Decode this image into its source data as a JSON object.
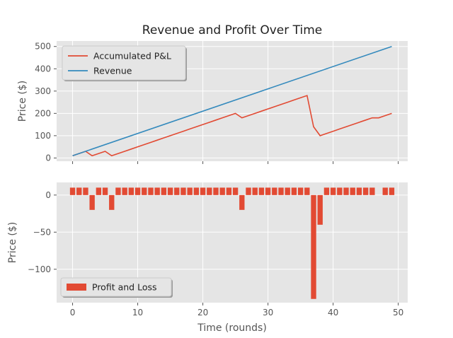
{
  "chart_data": [
    {
      "type": "line",
      "title": "Revenue and Profit Over Time",
      "xlabel": "",
      "ylabel": "Price ($)",
      "xlim": [
        -2.45,
        51.45
      ],
      "ylim": [
        -14.5,
        524.5
      ],
      "xticks": [
        0,
        10,
        20,
        30,
        40,
        50
      ],
      "xtick_labels_visible": false,
      "yticks": [
        0,
        100,
        200,
        300,
        400,
        500
      ],
      "ytick_labels": [
        "0",
        "100",
        "200",
        "300",
        "400",
        "500"
      ],
      "grid": true,
      "legend_position": "upper-left",
      "series": [
        {
          "name": "Accumulated P&L",
          "color": "#E24A33",
          "x": [
            0,
            1,
            2,
            3,
            4,
            5,
            6,
            7,
            8,
            9,
            10,
            11,
            12,
            13,
            14,
            15,
            16,
            17,
            18,
            19,
            20,
            21,
            22,
            23,
            24,
            25,
            26,
            27,
            28,
            29,
            30,
            31,
            32,
            33,
            34,
            35,
            36,
            37,
            38,
            39,
            40,
            41,
            42,
            43,
            44,
            45,
            46,
            47,
            48,
            49
          ],
          "y": [
            10,
            20,
            30,
            10,
            20,
            30,
            10,
            20,
            30,
            40,
            50,
            60,
            70,
            80,
            90,
            100,
            110,
            120,
            130,
            140,
            150,
            160,
            170,
            180,
            190,
            200,
            180,
            190,
            200,
            210,
            220,
            230,
            240,
            250,
            260,
            270,
            280,
            140,
            100,
            110,
            120,
            130,
            140,
            150,
            160,
            170,
            180,
            180,
            190,
            200
          ]
        },
        {
          "name": "Revenue",
          "color": "#348ABD",
          "x": [
            0,
            49
          ],
          "y": [
            10,
            500
          ]
        }
      ]
    },
    {
      "type": "bar",
      "title": "",
      "xlabel": "Time (rounds)",
      "ylabel": "Price ($)",
      "xlim": [
        -2.45,
        51.45
      ],
      "ylim": [
        -145,
        17
      ],
      "xticks": [
        0,
        10,
        20,
        30,
        40,
        50
      ],
      "xtick_labels": [
        "0",
        "10",
        "20",
        "30",
        "40",
        "50"
      ],
      "yticks": [
        0,
        -50,
        -100
      ],
      "ytick_labels": [
        "0",
        "−50",
        "−100"
      ],
      "grid": true,
      "legend_position": "lower-left",
      "series": [
        {
          "name": "Profit and Loss",
          "color": "#E24A33",
          "x": [
            0,
            1,
            2,
            3,
            4,
            5,
            6,
            7,
            8,
            9,
            10,
            11,
            12,
            13,
            14,
            15,
            16,
            17,
            18,
            19,
            20,
            21,
            22,
            23,
            24,
            25,
            26,
            27,
            28,
            29,
            30,
            31,
            32,
            33,
            34,
            35,
            36,
            37,
            38,
            39,
            40,
            41,
            42,
            43,
            44,
            45,
            46,
            47,
            48,
            49
          ],
          "values": [
            10,
            10,
            10,
            -20,
            10,
            10,
            -20,
            10,
            10,
            10,
            10,
            10,
            10,
            10,
            10,
            10,
            10,
            10,
            10,
            10,
            10,
            10,
            10,
            10,
            10,
            10,
            -20,
            10,
            10,
            10,
            10,
            10,
            10,
            10,
            10,
            10,
            10,
            -140,
            -40,
            10,
            10,
            10,
            10,
            10,
            10,
            10,
            10,
            0,
            10,
            10
          ]
        }
      ]
    }
  ]
}
